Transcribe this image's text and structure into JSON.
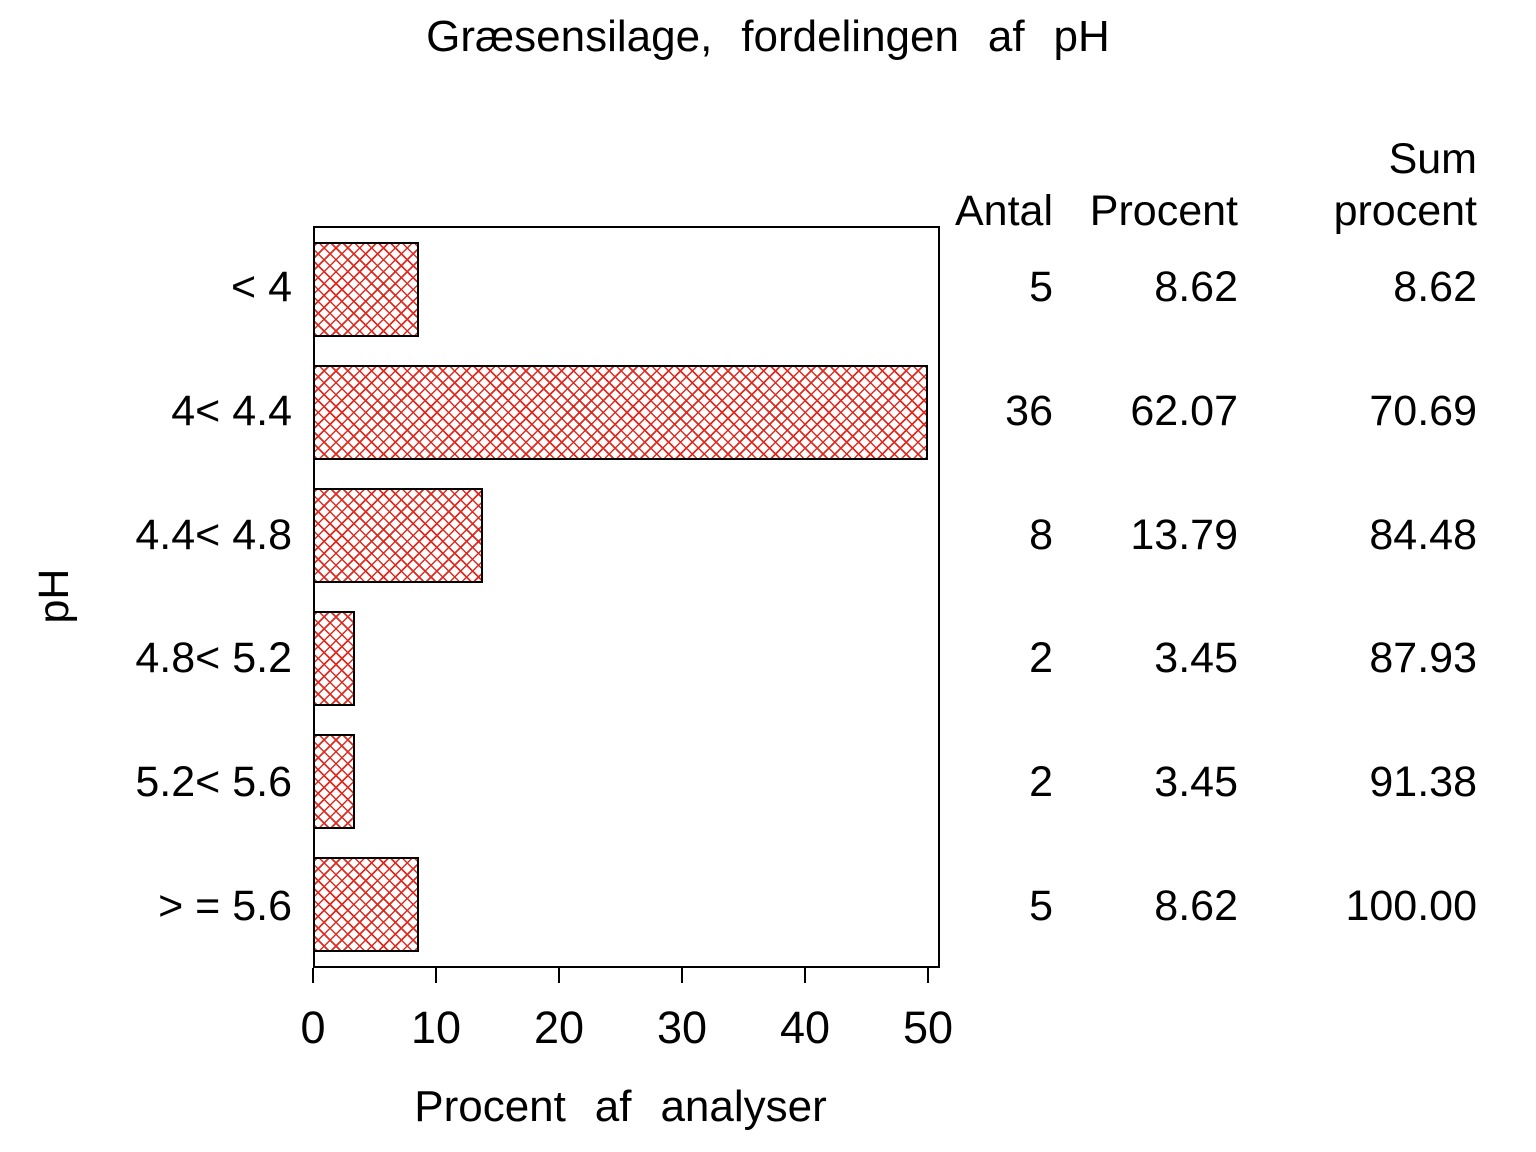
{
  "title": "Græsensilage, fordelingen af pH",
  "chart_data": {
    "type": "bar",
    "orientation": "horizontal",
    "title": "Græsensilage, fordelingen af pH",
    "xlabel": "Procent af analyser",
    "ylabel": "pH",
    "categories": [
      "< 4",
      "4< 4.4",
      "4.4< 4.8",
      "4.8< 5.2",
      "5.2< 5.6",
      "> = 5.6"
    ],
    "values": [
      8.62,
      62.07,
      13.79,
      3.45,
      3.45,
      8.62
    ],
    "xlim": [
      0,
      50
    ],
    "x_ticks": [
      0,
      10,
      20,
      30,
      40,
      50
    ],
    "x_tick_labels": [
      "0",
      "10",
      "20",
      "30",
      "40",
      "50"
    ],
    "grid": false,
    "bar_pattern": "red diagonal crosshatch, black outline",
    "note_bar_clipping": "62.07 bar is drawn clipped at axis max 50"
  },
  "table": {
    "headers": {
      "antal": "Antal",
      "procent": "Procent",
      "sum_line1": "Sum",
      "sum_line2": "procent"
    },
    "rows": [
      {
        "antal": "5",
        "procent": "8.62",
        "sum": "8.62"
      },
      {
        "antal": "36",
        "procent": "62.07",
        "sum": "70.69"
      },
      {
        "antal": "8",
        "procent": "13.79",
        "sum": "84.48"
      },
      {
        "antal": "2",
        "procent": "3.45",
        "sum": "87.93"
      },
      {
        "antal": "2",
        "procent": "3.45",
        "sum": "91.38"
      },
      {
        "antal": "5",
        "procent": "8.62",
        "sum": "100.00"
      }
    ]
  },
  "colors": {
    "bar_hatch": "#e02a1f",
    "axis": "#000000",
    "text": "#000000",
    "background": "#ffffff"
  }
}
